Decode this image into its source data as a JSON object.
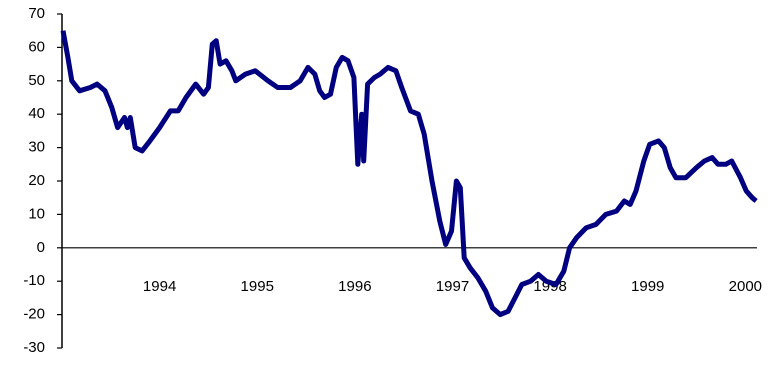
{
  "chart_data": {
    "type": "line",
    "x": [
      1993.01,
      1993.06,
      1993.1,
      1993.18,
      1993.29,
      1993.36,
      1993.44,
      1993.51,
      1993.57,
      1993.64,
      1993.67,
      1993.7,
      1993.75,
      1993.82,
      1993.9,
      1994.0,
      1994.11,
      1994.19,
      1994.27,
      1994.37,
      1994.45,
      1994.5,
      1994.54,
      1994.58,
      1994.62,
      1994.68,
      1994.74,
      1994.78,
      1994.88,
      1994.98,
      1995.11,
      1995.21,
      1995.34,
      1995.44,
      1995.52,
      1995.59,
      1995.64,
      1995.69,
      1995.75,
      1995.81,
      1995.87,
      1995.93,
      1995.99,
      1996.03,
      1996.07,
      1996.09,
      1996.13,
      1996.2,
      1996.26,
      1996.34,
      1996.42,
      1996.48,
      1996.57,
      1996.65,
      1996.71,
      1996.79,
      1996.87,
      1996.93,
      1996.99,
      1997.04,
      1997.08,
      1997.12,
      1997.18,
      1997.26,
      1997.34,
      1997.41,
      1997.49,
      1997.57,
      1997.64,
      1997.71,
      1997.8,
      1997.88,
      1997.96,
      1998.06,
      1998.14,
      1998.2,
      1998.27,
      1998.37,
      1998.47,
      1998.57,
      1998.68,
      1998.76,
      1998.82,
      1998.88,
      1998.96,
      1999.02,
      1999.11,
      1999.17,
      1999.23,
      1999.29,
      1999.39,
      1999.5,
      1999.58,
      1999.66,
      1999.72,
      1999.8,
      1999.86,
      1999.95,
      2000.01,
      2000.07,
      2000.11
    ],
    "series": [
      {
        "color": "#000080",
        "values": [
          65,
          57,
          50,
          47,
          48,
          49,
          47,
          42,
          36,
          39,
          36,
          39,
          30,
          29,
          32,
          36,
          41,
          41,
          45,
          49,
          46,
          48,
          61,
          62,
          55,
          56,
          53,
          50,
          52,
          53,
          50,
          48,
          48,
          50,
          54,
          52,
          47,
          45,
          46,
          54,
          57,
          56,
          51,
          25,
          40,
          26,
          49,
          51,
          52,
          54,
          53,
          48,
          41,
          40,
          34,
          20,
          8,
          1,
          5,
          20,
          18,
          -3,
          -6,
          -9,
          -13,
          -18,
          -20,
          -19,
          -15,
          -11,
          -10,
          -8,
          -10,
          -11,
          -7,
          0,
          3,
          6,
          7,
          10,
          11,
          14,
          13,
          17,
          26,
          31,
          32,
          30,
          24,
          21,
          21,
          24,
          26,
          27,
          25,
          25,
          26,
          21,
          17,
          15,
          14
        ]
      }
    ],
    "xlim": [
      1993,
      2000.15
    ],
    "xticks": [
      1994,
      1995,
      1996,
      1997,
      1998,
      1999,
      2000
    ],
    "ylim": [
      -30,
      70
    ],
    "yticks": [
      -30,
      -20,
      -10,
      0,
      10,
      20,
      30,
      40,
      50,
      60,
      70
    ]
  }
}
